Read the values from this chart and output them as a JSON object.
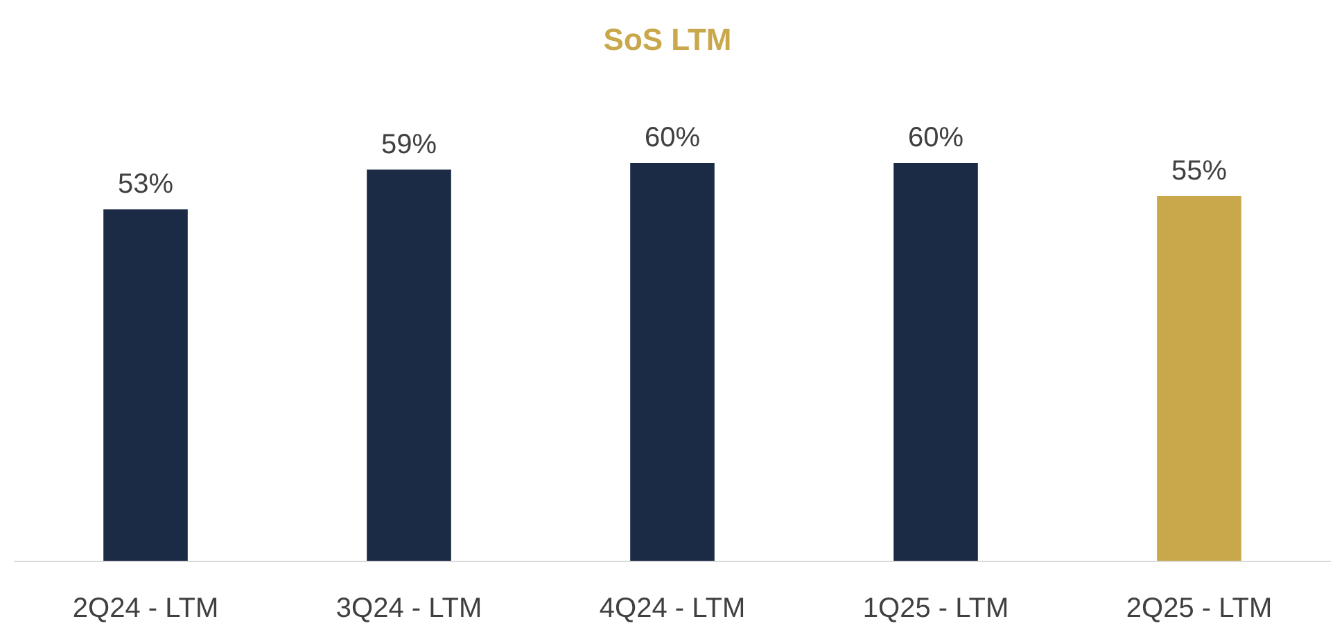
{
  "chart_data": {
    "type": "bar",
    "title": "SoS LTM",
    "categories": [
      "2Q24 - LTM",
      "3Q24 - LTM",
      "4Q24 - LTM",
      "1Q25 - LTM",
      "2Q25 - LTM"
    ],
    "values": [
      53,
      59,
      60,
      60,
      55
    ],
    "colors": [
      "#1b2a45",
      "#1b2a45",
      "#1b2a45",
      "#1b2a45",
      "#c9a84c"
    ],
    "value_labels": [
      "53%",
      "59%",
      "60%",
      "60%",
      "55%"
    ]
  }
}
